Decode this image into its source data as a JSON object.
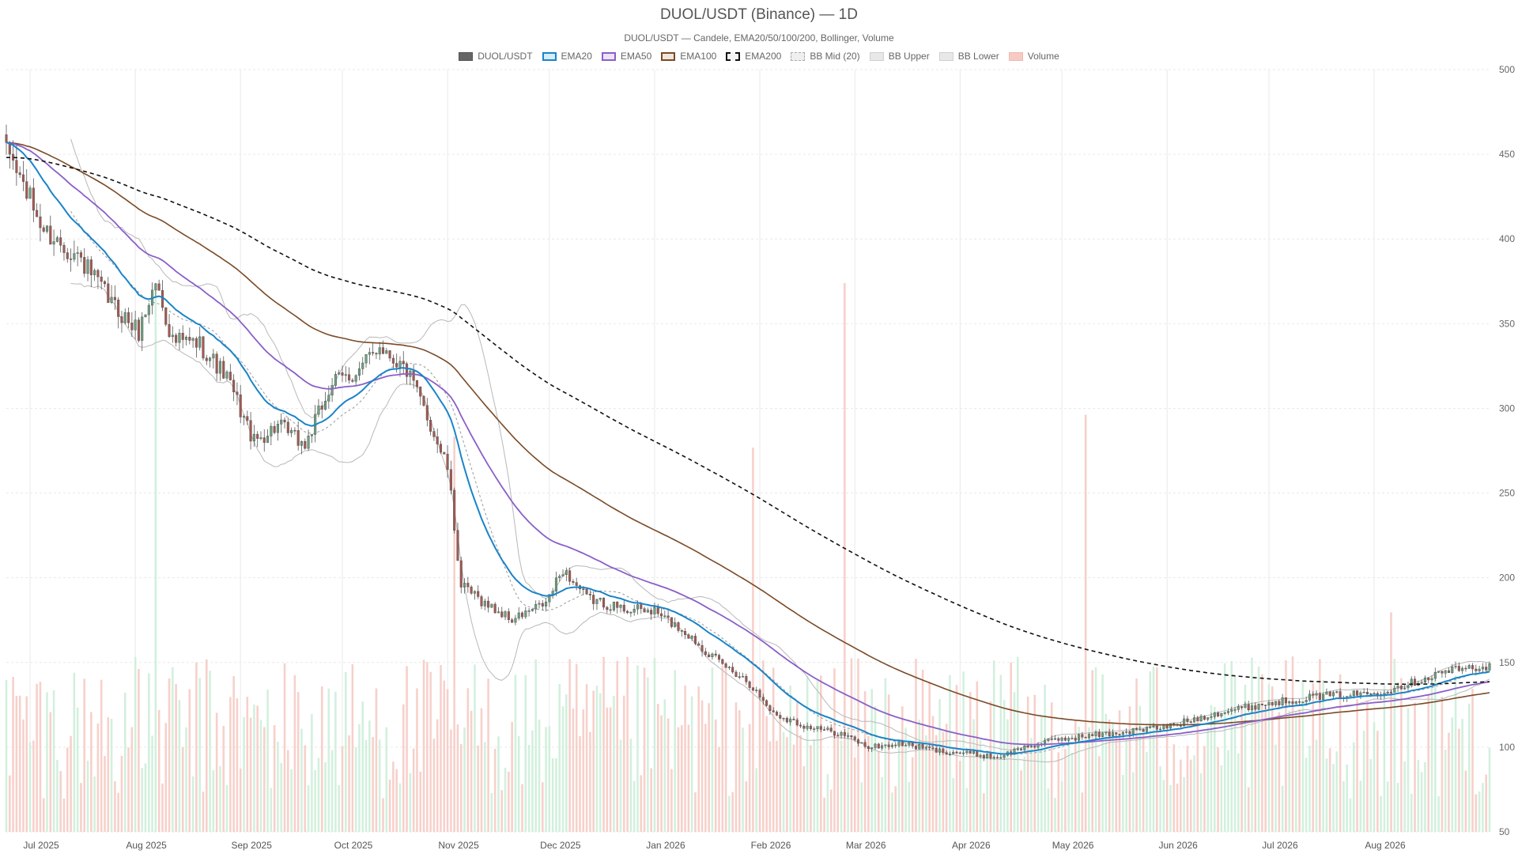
{
  "colors": {
    "up": "#6aa37f",
    "down": "#a8574f",
    "ema20": "#1a84c8",
    "ema50": "#8a5fc8",
    "ema100": "#7a4a26",
    "ema200": "#111111",
    "bb": "#b8b8b8",
    "vol_up": "#cdeed9",
    "vol_down": "#f6cbc4",
    "grid": "#e9e9e9"
  },
  "chart_data": {
    "type": "candlestick",
    "title": "DUOL/USDT (Binance) — 1D",
    "subtitle": "DUOL/USDT — Candele, EMA20/50/100/200, Bollinger, Volume",
    "legend": [
      {
        "name": "DUOL/USDT",
        "style": "solid-dark"
      },
      {
        "name": "EMA20",
        "style": "ema20"
      },
      {
        "name": "EMA50",
        "style": "ema50"
      },
      {
        "name": "EMA100",
        "style": "ema100"
      },
      {
        "name": "EMA200",
        "style": "ema200"
      },
      {
        "name": "BB Mid (20)",
        "style": "bbmid"
      },
      {
        "name": "BB Upper",
        "style": "bb"
      },
      {
        "name": "BB Lower",
        "style": "bb"
      },
      {
        "name": "Volume",
        "style": "vol"
      }
    ],
    "y_ticks": [
      "500",
      "450",
      "400",
      "350",
      "300",
      "250",
      "200",
      "150",
      "100",
      "50"
    ],
    "y_values": [
      500,
      450,
      400,
      350,
      300,
      250,
      200,
      150,
      100,
      50
    ],
    "ylim": [
      50,
      500
    ],
    "x_labels": [
      "Jul 2025",
      "Aug 2025",
      "Sep 2025",
      "Oct 2025",
      "Nov 2025",
      "Dec 2025",
      "Jan 2026",
      "Feb 2026",
      "Mar 2026",
      "Apr 2026",
      "May 2026",
      "Jun 2026",
      "Jul 2026",
      "Aug 2026"
    ],
    "x_label_dates": [
      "2025-07-01",
      "2025-08-01",
      "2025-09-01",
      "2025-10-01",
      "2025-11-01",
      "2025-12-01",
      "2026-01-01",
      "2026-02-01",
      "2026-03-01",
      "2026-04-01",
      "2026-05-01",
      "2026-06-01",
      "2026-07-01",
      "2026-08-01"
    ],
    "date_range": [
      "2025-06-24",
      "2026-09-04"
    ],
    "price_anchors": [
      {
        "date": "2025-06-25",
        "close": 450
      },
      {
        "date": "2025-07-05",
        "close": 405
      },
      {
        "date": "2025-07-15",
        "close": 390
      },
      {
        "date": "2025-07-25",
        "close": 362
      },
      {
        "date": "2025-08-02",
        "close": 345
      },
      {
        "date": "2025-08-07",
        "close": 375
      },
      {
        "date": "2025-08-12",
        "close": 340
      },
      {
        "date": "2025-08-20",
        "close": 338
      },
      {
        "date": "2025-08-28",
        "close": 318
      },
      {
        "date": "2025-09-05",
        "close": 280
      },
      {
        "date": "2025-09-12",
        "close": 290
      },
      {
        "date": "2025-09-20",
        "close": 278
      },
      {
        "date": "2025-09-28",
        "close": 315
      },
      {
        "date": "2025-10-06",
        "close": 322
      },
      {
        "date": "2025-10-12",
        "close": 338
      },
      {
        "date": "2025-10-20",
        "close": 322
      },
      {
        "date": "2025-10-25",
        "close": 300
      },
      {
        "date": "2025-11-01",
        "close": 265
      },
      {
        "date": "2025-11-05",
        "close": 195
      },
      {
        "date": "2025-11-12",
        "close": 185
      },
      {
        "date": "2025-11-20",
        "close": 175
      },
      {
        "date": "2025-11-30",
        "close": 185
      },
      {
        "date": "2025-12-05",
        "close": 205
      },
      {
        "date": "2025-12-12",
        "close": 188
      },
      {
        "date": "2025-12-22",
        "close": 182
      },
      {
        "date": "2026-01-01",
        "close": 180
      },
      {
        "date": "2026-01-10",
        "close": 168
      },
      {
        "date": "2026-01-20",
        "close": 150
      },
      {
        "date": "2026-01-28",
        "close": 140
      },
      {
        "date": "2026-02-05",
        "close": 120
      },
      {
        "date": "2026-02-15",
        "close": 112
      },
      {
        "date": "2026-02-25",
        "close": 108
      },
      {
        "date": "2026-03-05",
        "close": 100
      },
      {
        "date": "2026-03-15",
        "close": 102
      },
      {
        "date": "2026-03-25",
        "close": 98
      },
      {
        "date": "2026-04-05",
        "close": 96
      },
      {
        "date": "2026-04-12",
        "close": 94
      },
      {
        "date": "2026-04-20",
        "close": 100
      },
      {
        "date": "2026-05-01",
        "close": 105
      },
      {
        "date": "2026-05-15",
        "close": 108
      },
      {
        "date": "2026-06-01",
        "close": 112
      },
      {
        "date": "2026-06-15",
        "close": 120
      },
      {
        "date": "2026-07-01",
        "close": 126
      },
      {
        "date": "2026-07-15",
        "close": 130
      },
      {
        "date": "2026-08-01",
        "close": 132
      },
      {
        "date": "2026-08-12",
        "close": 138
      },
      {
        "date": "2026-08-22",
        "close": 145
      },
      {
        "date": "2026-09-04",
        "close": 148
      }
    ],
    "volume_scale_max": 1000,
    "volume_spikes": [
      {
        "date": "2025-08-07",
        "volume": 1000
      },
      {
        "date": "2025-11-03",
        "volume": 720
      },
      {
        "date": "2026-01-30",
        "volume": 700
      },
      {
        "date": "2026-02-26",
        "volume": 1000
      },
      {
        "date": "2026-05-08",
        "volume": 760
      },
      {
        "date": "2026-08-06",
        "volume": 400
      }
    ],
    "ema200_start": 448,
    "grid": true
  }
}
